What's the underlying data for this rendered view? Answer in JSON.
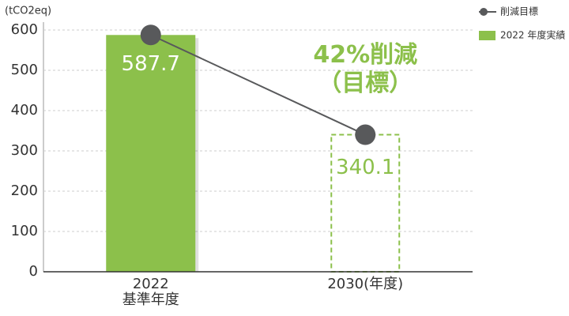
{
  "chart_data": {
    "type": "combo",
    "y_label": "(tCO2eq)",
    "categories": [
      "2022\n基準年度",
      "2030(年度)"
    ],
    "series": [
      {
        "name": "2022 年度実績",
        "type": "bar",
        "color": "#8cc04b",
        "values": [
          587.7,
          null
        ]
      },
      {
        "name": "削減目標",
        "type": "line",
        "color": "#58595b",
        "values": [
          587.7,
          340.1
        ]
      }
    ],
    "annotations": [
      "42%削減\n（目標）"
    ],
    "annotation_color": "#8cc04b",
    "ylim": [
      0,
      600
    ],
    "yticks": [
      0,
      100,
      200,
      300,
      400,
      500,
      600
    ],
    "grid": true,
    "legend": "top-right"
  }
}
